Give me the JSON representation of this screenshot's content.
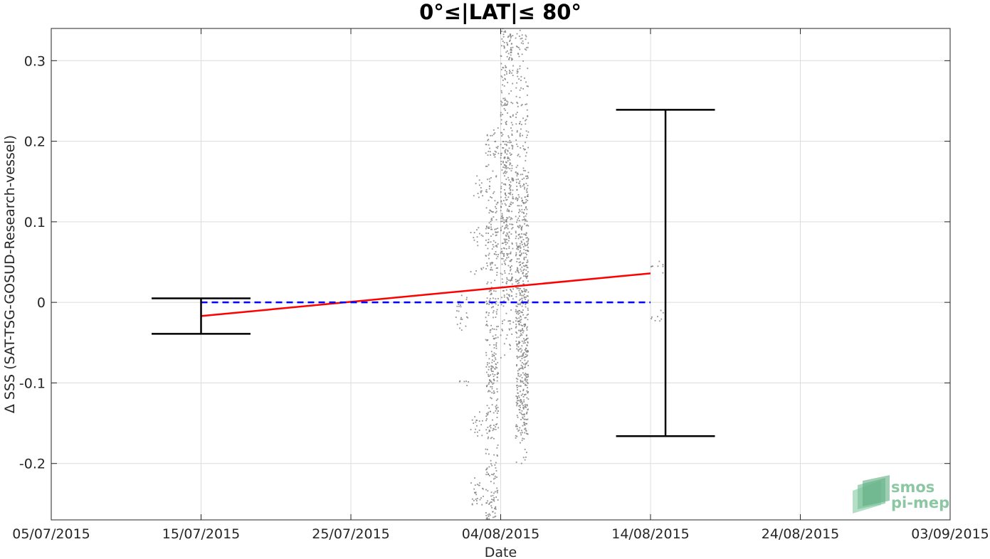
{
  "chart_data": {
    "type": "scatter",
    "title": "0°≤|LAT|≤ 80°",
    "xlabel": "Date",
    "ylabel": "Δ SSS (SAT-TSG-GOSUD-Research-vessel)",
    "xlim": [
      "05/07/2015",
      "03/09/2015"
    ],
    "ylim": [
      -0.27,
      0.34
    ],
    "grid": true,
    "x_ticks": [
      "05/07/2015",
      "15/07/2015",
      "25/07/2015",
      "04/08/2015",
      "14/08/2015",
      "24/08/2015",
      "03/09/2015"
    ],
    "y_ticks": [
      -0.2,
      -0.1,
      0,
      0.1,
      0.2,
      0.3
    ],
    "y_tick_labels": [
      "-0.2",
      "-0.1",
      "0",
      "0.1",
      "0.2",
      "0.3"
    ],
    "series": [
      {
        "type": "scatter",
        "color": "#7f7f7f",
        "segments": [
          {
            "date": "2015-08-01",
            "y_min": -0.105,
            "y_max": -0.095
          },
          {
            "date": "2015-08-01",
            "y_min": -0.04,
            "y_max": 0.01
          },
          {
            "date": "2015-08-02",
            "y_min": 0.07,
            "y_max": 0.095
          },
          {
            "date": "2015-08-02",
            "y_min": 0.13,
            "y_max": 0.157
          },
          {
            "date": "2015-08-02",
            "y_min": 0.035,
            "y_max": 0.045
          },
          {
            "date": "2015-08-02",
            "y_min": -0.17,
            "y_max": -0.135
          },
          {
            "date": "2015-08-02",
            "y_min": -0.255,
            "y_max": -0.215
          },
          {
            "date": "2015-08-02",
            "y_min": -0.245,
            "y_max": -0.23
          },
          {
            "date": "2015-08-03",
            "y_min": -0.16,
            "y_max": -0.06
          },
          {
            "date": "2015-08-03",
            "y_min": -0.035,
            "y_max": 0.015
          },
          {
            "date": "2015-08-03",
            "y_min": -0.27,
            "y_max": -0.2
          },
          {
            "date": "2015-08-03",
            "y_min": -0.1,
            "y_max": 0.22
          },
          {
            "date": "2015-08-03",
            "y_min": -0.27,
            "y_max": -0.15
          },
          {
            "date": "2015-08-03",
            "y_min": -0.16,
            "y_max": -0.04
          },
          {
            "date": "2015-08-03",
            "y_min": 0.04,
            "y_max": 0.12
          },
          {
            "date": "2015-08-04",
            "y_min": 0.05,
            "y_max": 0.34
          },
          {
            "date": "2015-08-04",
            "y_min": -0.07,
            "y_max": 0.2
          },
          {
            "date": "2015-08-04",
            "y_min": 0.0,
            "y_max": 0.34
          },
          {
            "date": "2015-08-05",
            "y_min": -0.2,
            "y_max": 0.34
          },
          {
            "date": "2015-08-05",
            "y_min": -0.14,
            "y_max": 0.17
          },
          {
            "date": "2015-08-05",
            "y_min": -0.17,
            "y_max": 0.1
          },
          {
            "date": "2015-08-05",
            "y_min": -0.15,
            "y_max": 0.16
          },
          {
            "date": "2015-08-14",
            "y_min": 0.035,
            "y_max": 0.052
          },
          {
            "date": "2015-08-14",
            "y_min": -0.025,
            "y_max": -0.01
          }
        ]
      },
      {
        "type": "line",
        "color": "#ff0000",
        "style": "solid",
        "x": [
          "2015-07-15",
          "2015-08-14"
        ],
        "y": [
          -0.017,
          0.036
        ]
      },
      {
        "type": "line",
        "color": "#0000ff",
        "style": "dashed",
        "x": [
          "2015-07-15",
          "2015-08-14"
        ],
        "y": [
          0,
          0
        ]
      },
      {
        "type": "errorbar",
        "color": "#000000",
        "points": [
          {
            "x": "2015-07-15",
            "y_low": -0.039,
            "y_high": 0.005
          },
          {
            "x": "2015-08-15",
            "y_low": -0.166,
            "y_high": 0.239
          }
        ],
        "cap_half_width_days": 3.3
      }
    ]
  },
  "logo": {
    "line1": "smos",
    "line2": "pi-mep",
    "color": "#8cc7a4"
  }
}
